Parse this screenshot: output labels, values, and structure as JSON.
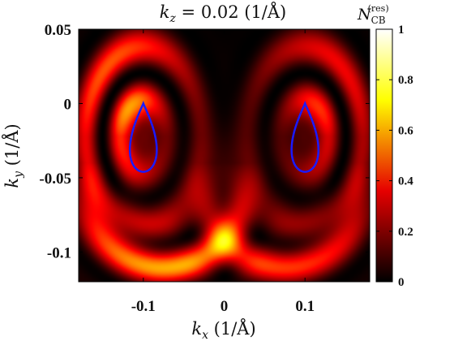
{
  "chart_data": {
    "type": "heatmap",
    "title": "k_z = 0.02 (1/Å)",
    "title_parts": {
      "var": "k",
      "sub": "z",
      "rest": " = 0.02 (1/Å)"
    },
    "xlabel_parts": {
      "var": "k",
      "sub": "x",
      "rest": " (1/Å)"
    },
    "ylabel_parts": {
      "var": "k",
      "sub": "y",
      "rest": " (1/Å)"
    },
    "colorbar_label_parts": {
      "var": "N",
      "sub": "CB",
      "sup": "(res)"
    },
    "xlim": [
      -0.18,
      0.18
    ],
    "ylim": [
      -0.12,
      0.05
    ],
    "x_ticks": [
      -0.1,
      0,
      0.1
    ],
    "x_tick_labels": [
      "-0.1",
      "0",
      "0.1"
    ],
    "y_ticks": [
      0.05,
      0,
      -0.05,
      -0.1
    ],
    "y_tick_labels": [
      "0.05",
      "0",
      "-0.05",
      "-0.1"
    ],
    "colorbar": {
      "colormap": "hot",
      "range": [
        0,
        1
      ],
      "ticks": [
        0,
        0.2,
        0.4,
        0.6,
        0.8,
        1
      ],
      "tick_labels": [
        "0",
        "0.2",
        "0.4",
        "0.6",
        "0.8",
        "1"
      ]
    },
    "contours": [
      {
        "name": "left-fermi-pocket",
        "color": "#1a1aff",
        "center_kx": -0.1,
        "top_ky": 0.0,
        "bottom_ky": -0.046,
        "half_width": 0.021
      },
      {
        "name": "right-fermi-pocket",
        "color": "#1a1aff",
        "center_kx": 0.1,
        "top_ky": 0.0,
        "bottom_ky": -0.046,
        "half_width": 0.021
      }
    ],
    "grid": false
  }
}
